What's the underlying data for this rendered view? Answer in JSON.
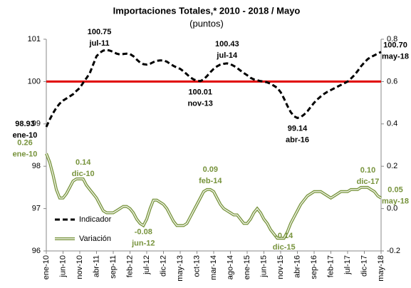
{
  "chart_data": {
    "type": "line",
    "title": "Importaciones Totales,* 2010 - 2018 / Mayo",
    "subtitle": "(puntos)",
    "categories": [
      "ene-10",
      null,
      null,
      null,
      null,
      "jun-10",
      null,
      null,
      null,
      null,
      "nov-10",
      null,
      null,
      null,
      null,
      "abr-11",
      null,
      null,
      null,
      null,
      "sep-11",
      null,
      null,
      null,
      null,
      "feb-12",
      null,
      null,
      null,
      null,
      "jul-12",
      null,
      null,
      null,
      null,
      "dic-12",
      null,
      null,
      null,
      null,
      "may-13",
      null,
      null,
      null,
      null,
      "oct-13",
      null,
      null,
      null,
      null,
      "mar-14",
      null,
      null,
      null,
      null,
      "ago-14",
      null,
      null,
      null,
      null,
      "ene-15",
      null,
      null,
      null,
      null,
      "jun-15",
      null,
      null,
      null,
      null,
      "nov-15",
      null,
      null,
      null,
      null,
      "abr-16",
      null,
      null,
      null,
      null,
      "sep-16",
      null,
      null,
      null,
      null,
      "feb-17",
      null,
      null,
      null,
      null,
      "jul-17",
      null,
      null,
      null,
      null,
      "dic-17",
      null,
      null,
      null,
      null,
      "may-18"
    ],
    "series": [
      {
        "name": "Indicador",
        "color": "#000000",
        "dash": true,
        "values": [
          98.93,
          99.1,
          99.25,
          99.38,
          99.48,
          99.55,
          99.6,
          99.65,
          99.7,
          99.78,
          99.85,
          99.97,
          100.08,
          100.2,
          100.4,
          100.6,
          100.68,
          100.73,
          100.75,
          100.73,
          100.7,
          100.66,
          100.64,
          100.65,
          100.66,
          100.65,
          100.6,
          100.52,
          100.45,
          100.41,
          100.4,
          100.42,
          100.46,
          100.49,
          100.5,
          100.5,
          100.47,
          100.42,
          100.37,
          100.33,
          100.3,
          100.24,
          100.17,
          100.1,
          100.05,
          100.02,
          100.01,
          100.05,
          100.13,
          100.22,
          100.3,
          100.36,
          100.4,
          100.42,
          100.43,
          100.41,
          100.37,
          100.32,
          100.26,
          100.2,
          100.15,
          100.09,
          100.05,
          100.03,
          100.01,
          100.0,
          99.98,
          99.95,
          99.9,
          99.85,
          99.75,
          99.6,
          99.43,
          99.28,
          99.18,
          99.14,
          99.16,
          99.22,
          99.3,
          99.4,
          99.5,
          99.58,
          99.65,
          99.71,
          99.76,
          99.8,
          99.84,
          99.88,
          99.92,
          99.96,
          100.0,
          100.07,
          100.15,
          100.25,
          100.36,
          100.45,
          100.53,
          100.58,
          100.62,
          100.66,
          100.7
        ]
      },
      {
        "name": "Variación",
        "color": "#77933c",
        "axis": "y2",
        "values": [
          0.26,
          0.22,
          0.16,
          0.09,
          0.05,
          0.05,
          0.07,
          0.1,
          0.13,
          0.14,
          0.14,
          0.14,
          0.11,
          0.09,
          0.07,
          0.05,
          0.02,
          -0.01,
          -0.02,
          -0.02,
          -0.02,
          -0.01,
          0.0,
          0.01,
          0.01,
          0.0,
          -0.02,
          -0.05,
          -0.07,
          -0.08,
          -0.05,
          0.0,
          0.04,
          0.04,
          0.03,
          0.02,
          0.0,
          -0.03,
          -0.06,
          -0.08,
          -0.08,
          -0.08,
          -0.07,
          -0.04,
          -0.01,
          0.02,
          0.05,
          0.08,
          0.09,
          0.09,
          0.08,
          0.05,
          0.02,
          0.0,
          -0.01,
          -0.02,
          -0.03,
          -0.03,
          -0.05,
          -0.07,
          -0.07,
          -0.05,
          -0.02,
          0.0,
          -0.02,
          -0.05,
          -0.07,
          -0.1,
          -0.12,
          -0.14,
          -0.14,
          -0.14,
          -0.11,
          -0.07,
          -0.04,
          -0.01,
          0.02,
          0.04,
          0.06,
          0.07,
          0.08,
          0.08,
          0.08,
          0.07,
          0.06,
          0.05,
          0.06,
          0.07,
          0.08,
          0.08,
          0.08,
          0.09,
          0.09,
          0.09,
          0.1,
          0.1,
          0.1,
          0.09,
          0.08,
          0.06,
          0.05
        ]
      }
    ],
    "annotations": [
      {
        "series": 0,
        "index": 0,
        "value_label": "98.93",
        "label": "ene-10"
      },
      {
        "series": 0,
        "index": 18,
        "value_label": "100.75",
        "label": "jul-11"
      },
      {
        "series": 0,
        "index": 46,
        "value_label": "100.01",
        "label": "nov-13"
      },
      {
        "series": 0,
        "index": 54,
        "value_label": "100.43",
        "label": "jul-14"
      },
      {
        "series": 0,
        "index": 75,
        "value_label": "99.14",
        "label": "abr-16"
      },
      {
        "series": 0,
        "index": 100,
        "value_label": "100.70",
        "label": "may-18"
      },
      {
        "series": 1,
        "index": 0,
        "value_label": "0.26",
        "label": "ene-10"
      },
      {
        "series": 1,
        "index": 11,
        "value_label": "0.14",
        "label": "dic-10"
      },
      {
        "series": 1,
        "index": 29,
        "value_label": "-0.08",
        "label": "jun-12"
      },
      {
        "series": 1,
        "index": 49,
        "value_label": "0.09",
        "label": "feb-14"
      },
      {
        "series": 1,
        "index": 71,
        "value_label": "-0.14",
        "label": "dic-15"
      },
      {
        "series": 1,
        "index": 95,
        "value_label": "0.10",
        "label": "dic-17"
      },
      {
        "series": 1,
        "index": 100,
        "value_label": "0.05",
        "label": "may-18"
      }
    ],
    "reference_line": {
      "value": 100,
      "color": "#e00000"
    },
    "ylim": [
      96,
      101
    ],
    "yticks": [
      96,
      97,
      98,
      99,
      100,
      101
    ],
    "y2lim": [
      -0.2,
      0.8
    ],
    "y2ticks": [
      -0.2,
      {
        "value": 0,
        "label": "0.0"
      },
      0.2,
      0.4,
      0.6,
      0.8
    ],
    "legend": "lower left"
  }
}
